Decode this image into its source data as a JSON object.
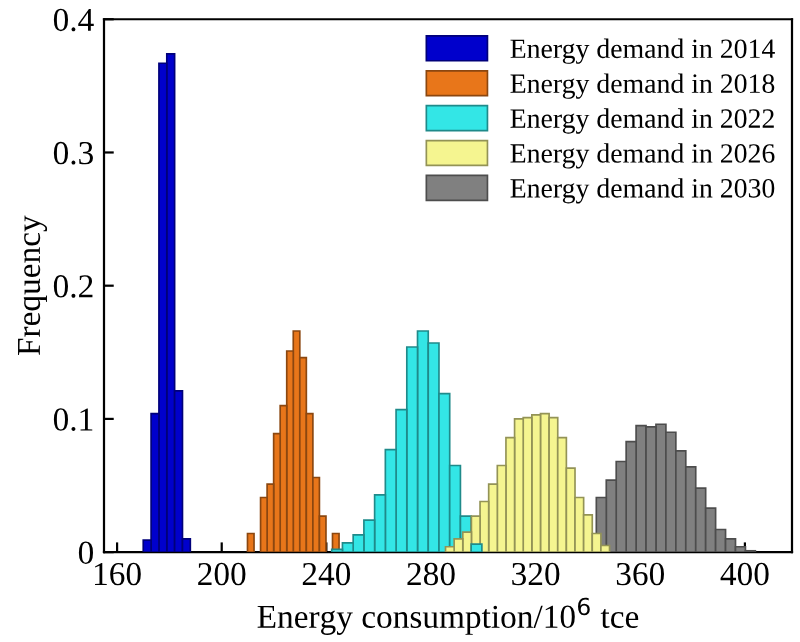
{
  "chart_data": {
    "type": "bar",
    "xlabel": "Energy consumption/10$^{6}$ tce",
    "ylabel": "Frequency",
    "xlim": [
      155,
      418
    ],
    "xticks": [
      160,
      200,
      240,
      280,
      320,
      360,
      400
    ],
    "ylim": [
      0,
      0.4
    ],
    "yticks": [
      0,
      0.1,
      0.2,
      0.3,
      0.4
    ],
    "grid": false,
    "legend": "top right",
    "series": [
      {
        "name": "Energy demand in 2014",
        "color": "#0000cc",
        "x": [
          171.5,
          174.5,
          177.5,
          180.5,
          183.5,
          186.5
        ],
        "values": [
          0.009,
          0.104,
          0.367,
          0.374,
          0.121,
          0.01
        ]
      },
      {
        "name": "Energy demand in 2018",
        "color": "#e8761a",
        "x": [
          211.1,
          216.1,
          218.6,
          221.1,
          223.6,
          226.1,
          228.6,
          231.1,
          233.6,
          236.1,
          238.6,
          243.6
        ],
        "values": [
          0.014,
          0.041,
          0.051,
          0.089,
          0.11,
          0.151,
          0.166,
          0.146,
          0.104,
          0.056,
          0.027,
          0.014
        ]
      },
      {
        "name": "Energy demand in 2022",
        "color": "#33e6e6",
        "x": [
          244.1,
          248.2,
          252.3,
          256.4,
          260.5,
          264.6,
          268.7,
          272.8,
          276.9,
          281.0,
          285.1,
          289.2,
          293.3,
          297.4
        ],
        "values": [
          0.002,
          0.007,
          0.013,
          0.024,
          0.043,
          0.077,
          0.107,
          0.154,
          0.166,
          0.157,
          0.119,
          0.065,
          0.027,
          0.006
        ]
      },
      {
        "name": "Energy demand in 2026",
        "color": "#f5f590",
        "x": [
          287.2,
          290.5,
          293.8,
          297.1,
          300.4,
          303.7,
          307.0,
          310.3,
          313.6,
          316.9,
          320.2,
          323.5,
          326.8,
          330.1,
          333.4,
          336.7,
          340.0,
          343.3,
          346.6
        ],
        "values": [
          0.004,
          0.01,
          0.015,
          0.027,
          0.038,
          0.051,
          0.065,
          0.086,
          0.1,
          0.101,
          0.103,
          0.104,
          0.101,
          0.086,
          0.063,
          0.041,
          0.028,
          0.014,
          0.005
        ]
      },
      {
        "name": "Energy demand in 2030",
        "color": "#808080",
        "x": [
          345.1,
          348.9,
          352.7,
          356.5,
          360.3,
          364.1,
          367.9,
          371.7,
          375.5,
          379.3,
          383.1,
          386.9,
          390.7,
          394.5,
          398.3,
          402.1
        ],
        "values": [
          0.041,
          0.054,
          0.068,
          0.083,
          0.095,
          0.094,
          0.096,
          0.09,
          0.076,
          0.064,
          0.048,
          0.033,
          0.017,
          0.01,
          0.004,
          0.001
        ]
      }
    ]
  }
}
